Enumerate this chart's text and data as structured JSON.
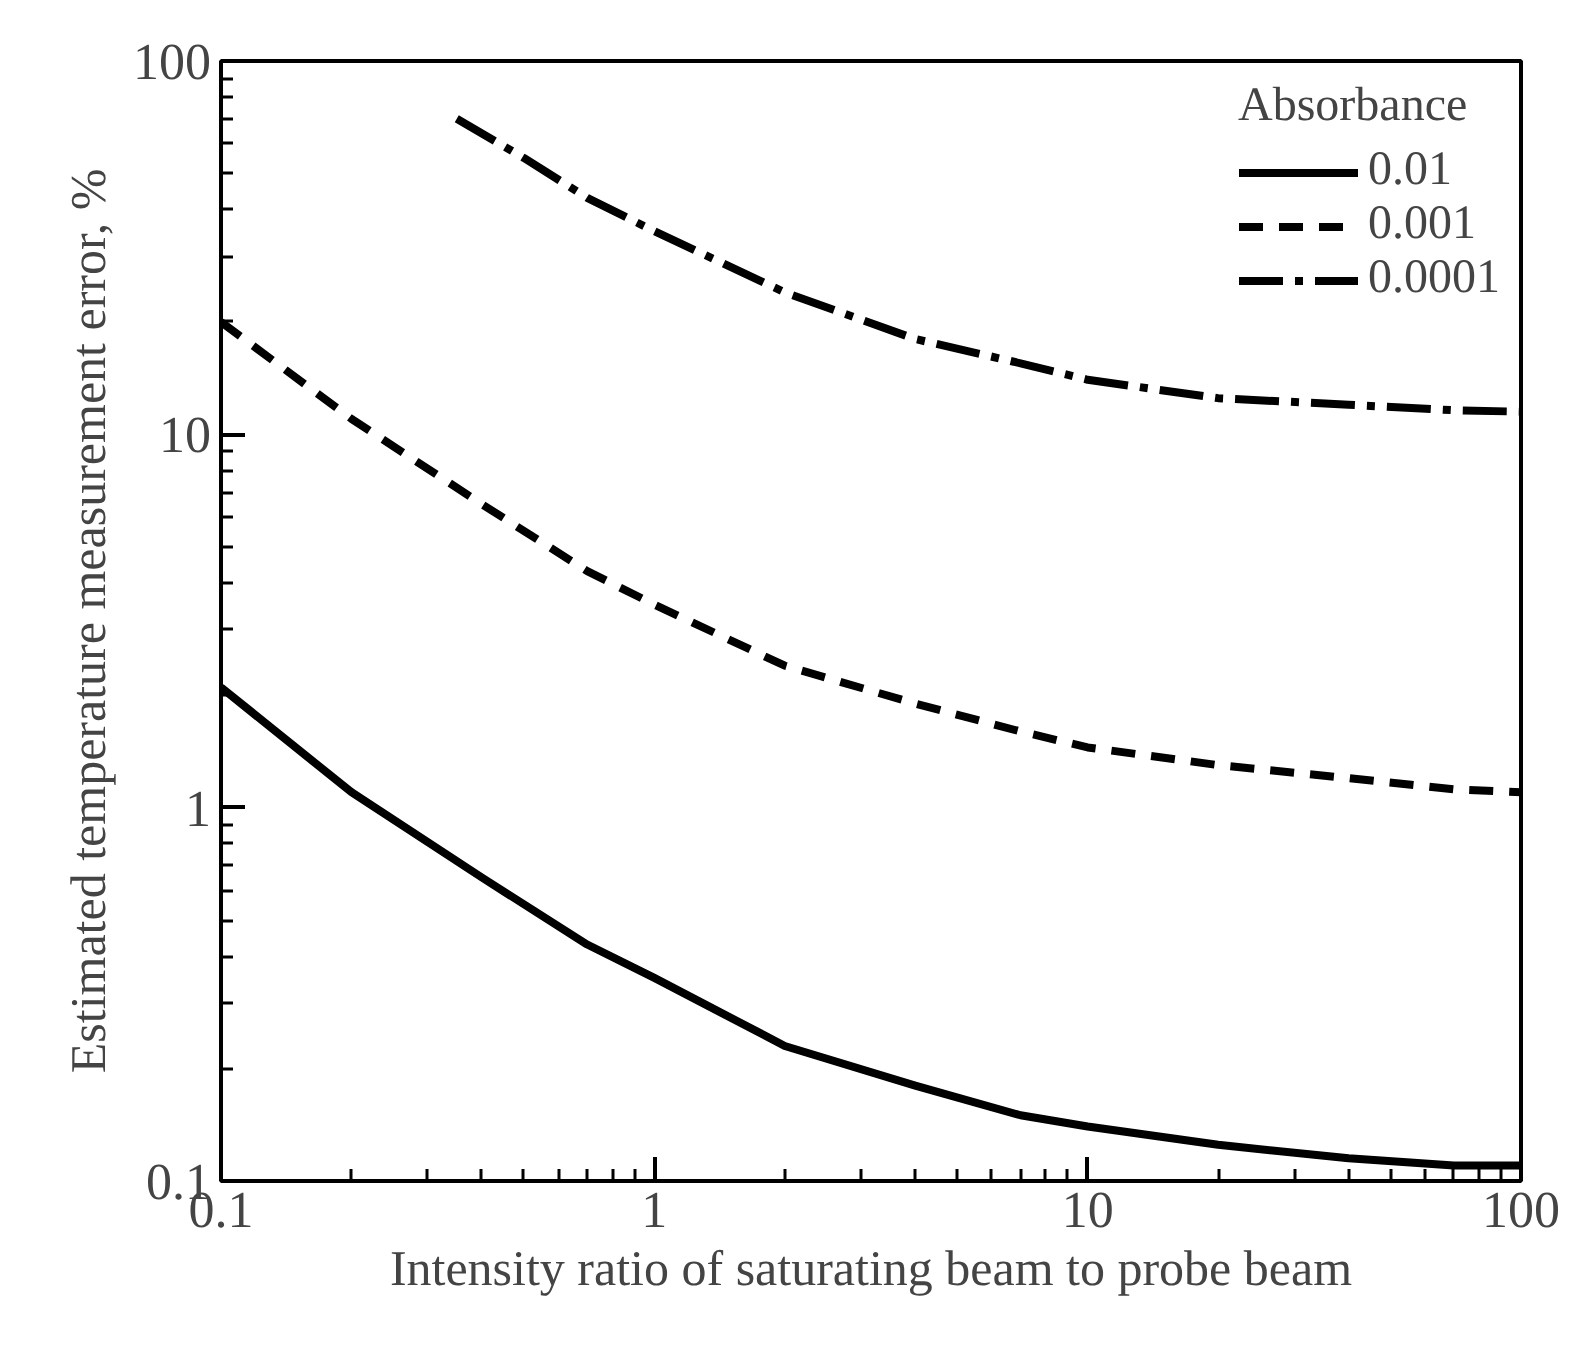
{
  "chart_data": {
    "type": "line",
    "xlabel": "Intensity ratio of saturating beam to probe beam",
    "ylabel": "Estimated temperature measurement error, %",
    "legend_title": "Absorbance",
    "log": "xy",
    "xlim": [
      0.1,
      100
    ],
    "ylim": [
      0.1,
      100
    ],
    "xticks": [
      0.1,
      1,
      10,
      100
    ],
    "yticks": [
      0.1,
      1,
      10,
      100
    ],
    "grid": false,
    "legend": "top right",
    "marker": "none",
    "series": [
      {
        "name": "0.01",
        "color": "#000000",
        "line_style": "solid",
        "x": [
          0.1,
          0.2,
          0.4,
          0.7,
          1,
          2,
          4,
          7,
          10,
          20,
          40,
          70,
          100
        ],
        "values": [
          2.1,
          1.1,
          0.65,
          0.43,
          0.35,
          0.23,
          0.18,
          0.15,
          0.14,
          0.125,
          0.115,
          0.11,
          0.11
        ]
      },
      {
        "name": "0.001",
        "color": "#000000",
        "line_style": "dashed",
        "x": [
          0.1,
          0.2,
          0.4,
          0.7,
          1,
          2,
          4,
          7,
          10,
          20,
          40,
          70,
          100
        ],
        "values": [
          20,
          11,
          6.5,
          4.3,
          3.5,
          2.4,
          1.9,
          1.6,
          1.45,
          1.3,
          1.2,
          1.12,
          1.1
        ]
      },
      {
        "name": "0.0001",
        "color": "#000000",
        "line_style": "dashdot",
        "x": [
          0.35,
          0.5,
          0.7,
          1,
          2,
          4,
          7,
          10,
          20,
          40,
          70,
          100
        ],
        "values": [
          70,
          55,
          43,
          35,
          24,
          18,
          15.5,
          14,
          12.5,
          12,
          11.6,
          11.5
        ]
      }
    ]
  }
}
